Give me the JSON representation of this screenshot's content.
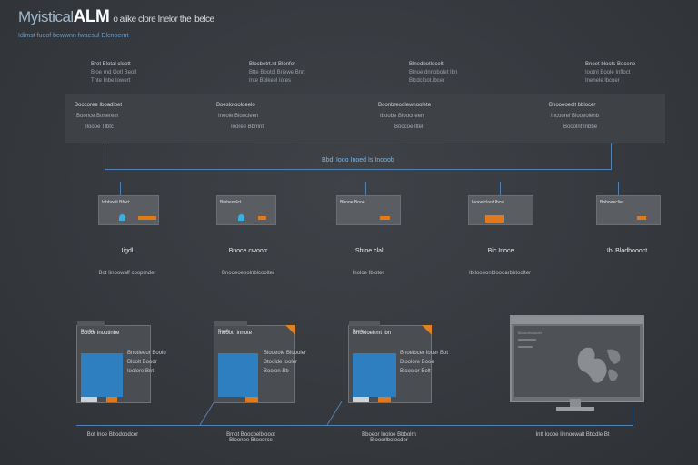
{
  "header": {
    "title_prefix": "Myistical",
    "title_brand": "ALM",
    "title_rest": "o alike clore Inelor the lbelce",
    "subtitle": "Idimst fuoof bewwnn fwaesul Dlcnoernt"
  },
  "top_headers": [
    {
      "line1": "Brot Blotal cloott",
      "line2": "Bloe rnd Ootl Beoll",
      "line3": "Tnte Inbe Iowert"
    },
    {
      "line1": "Blocbetrt.nt Blonfor",
      "line2": "Btte Bootcl Briewe Bnrt",
      "line3": "Inte Bolkeel Iotes"
    },
    {
      "line1": "Blnedbotlocelt",
      "line2": "Blnoe dnnbbolet Ibn",
      "line3": "Blcdcloot.ibcer"
    },
    {
      "line1": "Bnoet bloots Bocene",
      "line2": "Iootnl Boole Infloct",
      "line3": "Inenele lbcoer"
    }
  ],
  "top_panels": [
    {
      "line1": "Boocoree Iboadloet",
      "line2": "Boonce Btmerem",
      "line3": "Iloooe Tlbtc"
    },
    {
      "line1": "Boeslotooldeelo",
      "line2": "Inoole Bloocleen",
      "line3": "Iooree Bbmnt"
    },
    {
      "line1": "Boonbreoolewnoolete",
      "line2": "Iboobe Bloocneerr",
      "line3": "Boocoe Iltel"
    },
    {
      "line1": "Bnooeoeclt bblocer",
      "line2": "Incoorel Blooeolenb",
      "line3": "Booolnt Inbbe"
    }
  ],
  "center_label": "Bbdl Iooo Inoed  Is Inooob",
  "cards": [
    {
      "label": "Inbboolt Bfoct",
      "name": "Iigdl",
      "desc": "Bot Iinoowalf cooprnder",
      "dot": true,
      "accent": "#e07a1c"
    },
    {
      "label": "Binbeoolct",
      "name": "Bnoce cwoorr",
      "desc": "Bnooeoeoolnblcoolter",
      "dot": true,
      "accent": "#e07a1c"
    },
    {
      "label": "Bbooe Booe",
      "name": "Sbtoe clall",
      "desc": "Inoloe Ibloter",
      "dot": false,
      "accent": "#e07a1c"
    },
    {
      "label": "Ioonelcloot Ibce",
      "name": "Bic  Inoce",
      "desc": "Ibtloooonbloooarbbtoolter",
      "dot": false,
      "accent": "#e07a1c"
    },
    {
      "label": "Bnboeeclier",
      "name": "Ibl Blodboooct",
      "desc": "",
      "dot": false,
      "accent": "#e07a1c"
    }
  ],
  "windows": [
    {
      "tab": "Bootbl",
      "title": "Booor Inootinbe",
      "lines": [
        "Bnotleeor Boolo",
        "Bloolt Boodr",
        "Ioolore Bnt"
      ]
    },
    {
      "tab": "Bootlr",
      "title": "Inoootr Innote",
      "lines": [
        "Biooeole Bloooler",
        "Btoolde Iooler",
        "Boolon Bb"
      ]
    },
    {
      "tab": "Bootrl",
      "title": "Bnooloelrmt Ibn",
      "lines": [
        "Bnoelocer Iooer Bbt",
        "Bioolore Booe",
        "Bicoolor Bolt"
      ]
    }
  ],
  "monitor_label": "Bnooobcoooer",
  "footer": [
    {
      "line1": "Bot Inoe Bbodoodcer",
      "line2": ""
    },
    {
      "line1": "Bmot Boocbelblooot",
      "line2": "Bloonbe Btoodrce"
    },
    {
      "line1": "Bboeor Inoloe Bbbolrn",
      "line2": "Biooerlbolocder"
    },
    {
      "line1": "Intt Ioobe Iinnoowalt Bbcdle Bt",
      "line2": ""
    }
  ],
  "colors": {
    "accent_orange": "#e07a1c",
    "accent_blue": "#2d7fbf",
    "connector": "#4f82b3"
  }
}
